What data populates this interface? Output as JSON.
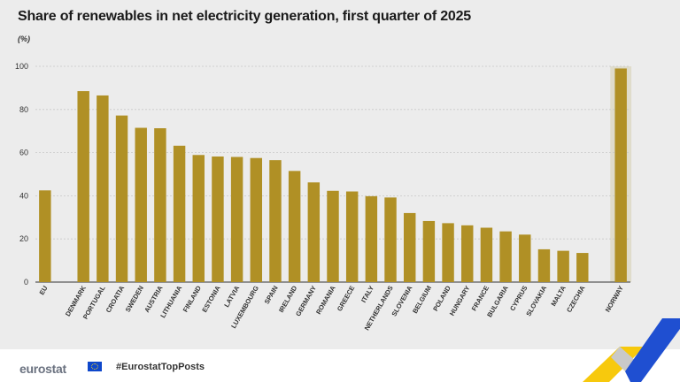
{
  "chart_data": {
    "type": "bar",
    "title": "Share of renewables in net electricity generation, first quarter of 2025",
    "unit": "(%)",
    "categories": [
      "EU",
      "DENMARK",
      "PORTUGAL",
      "CROATIA",
      "SWEDEN",
      "AUSTRIA",
      "LITHUANIA",
      "FINLAND",
      "ESTONIA",
      "LATVIA",
      "LUXEMBOURG",
      "SPAIN",
      "IRELAND",
      "GERMANY",
      "ROMANIA",
      "GREECE",
      "ITALY",
      "NETHERLANDS",
      "SLOVENIA",
      "BELGIUM",
      "POLAND",
      "HUNGARY",
      "FRANCE",
      "BULGARIA",
      "CYPRUS",
      "SLOVAKIA",
      "MALTA",
      "CZECHIA",
      "NORWAY"
    ],
    "values": [
      42.5,
      88.5,
      86.5,
      77.2,
      71.5,
      71.3,
      63.2,
      58.9,
      58.2,
      58.0,
      57.5,
      56.5,
      51.5,
      46.2,
      42.3,
      42.0,
      39.8,
      39.2,
      32.0,
      28.3,
      27.3,
      26.3,
      25.2,
      23.5,
      22.0,
      15.2,
      14.5,
      13.5,
      99.0
    ],
    "yticks": [
      0,
      20,
      40,
      60,
      80,
      100
    ],
    "ylim": [
      0,
      100
    ],
    "grid": true,
    "bar_color": "#b09025",
    "highlight_background": "#dfdccb",
    "highlighted_category": "NORWAY"
  },
  "footer": {
    "logo": "eurostat",
    "hashtag": "#EurostatTopPosts"
  },
  "icons": [
    "eu-flag-icon",
    "eurostat-chevron-logo-icon"
  ]
}
